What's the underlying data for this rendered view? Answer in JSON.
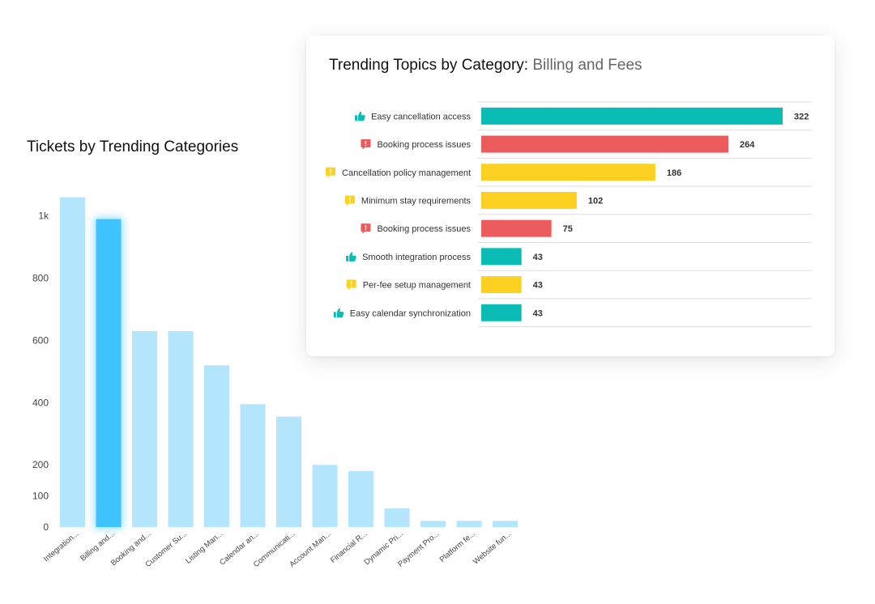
{
  "colors": {
    "bar_light": "#b3e5fc",
    "bar_selected": "#40c4ff",
    "positive": "#0bbcb4",
    "negative": "#ec5c5c",
    "neutral": "#fdd122"
  },
  "chart_data": [
    {
      "type": "bar",
      "title": "Tickets by Trending Categories",
      "categories": [
        "Integration...",
        "Billing and...",
        "Booking and...",
        "Customer Su...",
        "Listing Man...",
        "Calendar an...",
        "Communicati...",
        "Account Man...",
        "Financial R...",
        "Dynamic Pri...",
        "Payment Pro...",
        "Platform fe...",
        "Website fun..."
      ],
      "values": [
        1060,
        990,
        630,
        630,
        520,
        395,
        355,
        200,
        180,
        60,
        20,
        20,
        20
      ],
      "selected_index": 1,
      "ylim": [
        0,
        1080
      ],
      "yticks": [
        {
          "value": 0,
          "label": "0"
        },
        {
          "value": 100,
          "label": "100"
        },
        {
          "value": 200,
          "label": "200"
        },
        {
          "value": 400,
          "label": "400"
        },
        {
          "value": 600,
          "label": "600"
        },
        {
          "value": 800,
          "label": "800"
        },
        {
          "value": 1000,
          "label": "1k"
        }
      ],
      "grid": false
    },
    {
      "type": "bar",
      "orientation": "horizontal",
      "title": "Trending Topics by Category:",
      "subtitle": "Billing and Fees",
      "xlim": [
        0,
        340
      ],
      "topics": [
        {
          "label": "Easy cancellation access",
          "value": 322,
          "value_label": "322",
          "sentiment": "positive",
          "icon": "thumbs-up-icon"
        },
        {
          "label": "Booking process issues",
          "value": 264,
          "value_label": "264",
          "sentiment": "negative",
          "icon": "alert-icon"
        },
        {
          "label": "Cancellation policy management",
          "value": 186,
          "value_label": "186",
          "sentiment": "neutral",
          "icon": "comment-icon"
        },
        {
          "label": "Minimum stay requirements",
          "value": 102,
          "value_label": "102",
          "sentiment": "neutral",
          "icon": "comment-icon"
        },
        {
          "label": "Booking process issues",
          "value": 75,
          "value_label": "75",
          "sentiment": "negative",
          "icon": "alert-icon"
        },
        {
          "label": "Smooth integration process",
          "value": 43,
          "value_label": "43",
          "sentiment": "positive",
          "icon": "thumbs-up-icon"
        },
        {
          "label": "Per-fee setup management",
          "value": 43,
          "value_label": "43",
          "sentiment": "neutral",
          "icon": "comment-icon"
        },
        {
          "label": "Easy calendar synchronization",
          "value": 43,
          "value_label": "43",
          "sentiment": "positive",
          "icon": "thumbs-up-icon"
        }
      ]
    }
  ]
}
